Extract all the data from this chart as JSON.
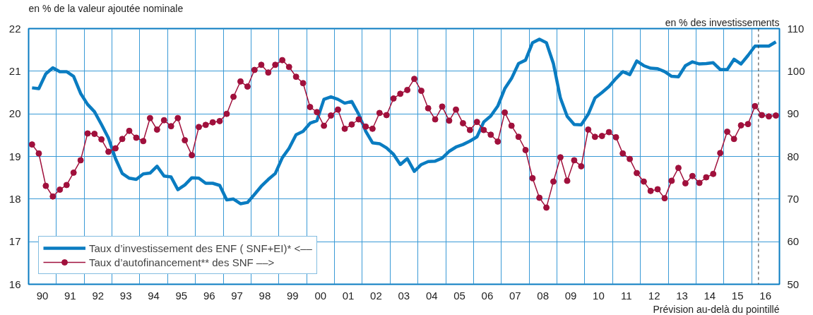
{
  "chart_data": {
    "type": "line",
    "ylabel": "en % de la valeur ajoutée nominale",
    "y2label": "en % des investissements",
    "x": [
      "1990-02-15",
      "1990-05-15",
      "1990-08-15",
      "1990-11-15",
      "1991-02-15",
      "1991-05-15",
      "1991-08-15",
      "1991-11-15",
      "1992-02-15",
      "1992-05-15",
      "1992-08-15",
      "1992-11-15",
      "1993-02-15",
      "1993-05-15",
      "1993-08-15",
      "1993-11-15",
      "1994-02-15",
      "1994-05-15",
      "1994-08-15",
      "1994-11-15",
      "1995-02-15",
      "1995-05-15",
      "1995-08-15",
      "1995-11-15",
      "1996-02-15",
      "1996-05-15",
      "1996-08-15",
      "1996-11-15",
      "1997-02-15",
      "1997-05-15",
      "1997-08-15",
      "1997-11-15",
      "1998-02-15",
      "1998-05-15",
      "1998-08-15",
      "1998-11-15",
      "1999-02-15",
      "1999-05-15",
      "1999-08-15",
      "1999-11-15",
      "2000-02-15",
      "2000-05-15",
      "2000-08-15",
      "2000-11-15",
      "2001-02-15",
      "2001-05-15",
      "2001-08-15",
      "2001-11-15",
      "2002-02-15",
      "2002-05-15",
      "2002-08-15",
      "2002-11-15",
      "2003-02-15",
      "2003-05-15",
      "2003-08-15",
      "2003-11-15",
      "2004-02-15",
      "2004-05-15",
      "2004-08-15",
      "2004-11-15",
      "2005-02-15",
      "2005-05-15",
      "2005-08-15",
      "2005-11-15",
      "2006-02-15",
      "2006-05-15",
      "2006-08-15",
      "2006-11-15",
      "2007-02-15",
      "2007-05-15",
      "2007-08-15",
      "2007-11-15",
      "2008-02-15",
      "2008-05-15",
      "2008-08-15",
      "2008-11-15",
      "2009-02-15",
      "2009-05-15",
      "2009-08-15",
      "2009-11-15",
      "2010-02-15",
      "2010-05-15",
      "2010-08-15",
      "2010-11-15",
      "2011-02-15",
      "2011-05-15",
      "2011-08-15",
      "2011-11-15",
      "2012-02-15",
      "2012-05-15",
      "2012-08-15",
      "2012-11-15",
      "2013-02-15",
      "2013-05-15",
      "2013-08-15",
      "2013-11-15",
      "2014-02-15",
      "2014-05-15",
      "2014-08-15",
      "2014-11-15",
      "2015-02-15",
      "2015-05-15",
      "2015-08-15",
      "2015-11-15",
      "2016-02-15",
      "2016-05-15",
      "2016-08-15",
      "2016-11-15"
    ],
    "series": [
      {
        "name": "Taux d’investissement des ENF ( SNF+EI)* <––",
        "color": "#0a7cc1",
        "marker": "none",
        "values": [
          20.61,
          20.59,
          20.94,
          21.08,
          20.99,
          20.99,
          20.88,
          20.48,
          20.22,
          20.05,
          19.75,
          19.43,
          18.95,
          18.6,
          18.49,
          18.46,
          18.59,
          18.61,
          18.77,
          18.54,
          18.52,
          18.22,
          18.33,
          18.5,
          18.49,
          18.37,
          18.37,
          18.32,
          17.98,
          18.0,
          17.89,
          17.92,
          18.11,
          18.3,
          18.46,
          18.6,
          18.97,
          19.19,
          19.51,
          19.59,
          19.78,
          19.84,
          20.34,
          20.4,
          20.34,
          20.25,
          20.29,
          19.99,
          19.59,
          19.32,
          19.3,
          19.2,
          19.05,
          18.81,
          18.95,
          18.65,
          18.81,
          18.88,
          18.89,
          18.96,
          19.12,
          19.22,
          19.28,
          19.36,
          19.46,
          19.81,
          19.95,
          20.18,
          20.59,
          20.83,
          21.18,
          21.26,
          21.67,
          21.75,
          21.67,
          21.18,
          20.37,
          19.94,
          19.75,
          19.74,
          19.99,
          20.37,
          20.5,
          20.64,
          20.83,
          20.99,
          20.92,
          21.24,
          21.13,
          21.07,
          21.06,
          20.99,
          20.88,
          20.87,
          21.13,
          21.22,
          21.17,
          21.18,
          21.2,
          21.04,
          21.04,
          21.28,
          21.17,
          21.37,
          21.59,
          21.59,
          21.59,
          21.69
        ]
      },
      {
        "name": "Taux d’autofinancement** des SNF ––>",
        "color": "#a0103c",
        "marker": "circle",
        "axis": "y2",
        "values": [
          82.8,
          80.7,
          73.1,
          70.6,
          72.2,
          73.3,
          76.2,
          79.1,
          85.4,
          85.3,
          84.0,
          81.1,
          81.9,
          84.1,
          86.0,
          84.4,
          83.6,
          89.0,
          86.3,
          88.5,
          87.1,
          89.0,
          83.8,
          80.3,
          86.9,
          87.4,
          88.0,
          88.3,
          90.0,
          94.0,
          97.6,
          96.4,
          100.3,
          101.5,
          99.7,
          101.5,
          102.6,
          101.0,
          98.7,
          97.2,
          91.6,
          90.4,
          87.2,
          89.6,
          91.0,
          86.5,
          87.5,
          88.7,
          87.0,
          86.5,
          90.2,
          89.7,
          93.6,
          94.7,
          95.6,
          98.2,
          95.4,
          91.3,
          88.7,
          91.7,
          88.4,
          91.0,
          87.8,
          86.2,
          88.1,
          86.2,
          85.1,
          83.5,
          90.3,
          87.2,
          84.6,
          81.5,
          74.9,
          70.3,
          68.0,
          74.1,
          79.8,
          74.3,
          79.1,
          77.7,
          86.3,
          84.6,
          84.8,
          85.7,
          84.5,
          80.7,
          79.4,
          76.1,
          74.1,
          71.9,
          72.3,
          70.2,
          74.3,
          77.3,
          73.7,
          75.4,
          73.8,
          75.1,
          75.9,
          80.8,
          85.8,
          84.1,
          87.3,
          87.6,
          91.8,
          89.7,
          89.4,
          89.6
        ]
      }
    ],
    "xlim": [
      "1990-01-01",
      "2017-01-01"
    ],
    "xticks": [
      {
        "value": "1990-07-01",
        "label": "90"
      },
      {
        "value": "1991-07-01",
        "label": "91"
      },
      {
        "value": "1992-07-01",
        "label": "92"
      },
      {
        "value": "1993-07-01",
        "label": "93"
      },
      {
        "value": "1994-07-01",
        "label": "94"
      },
      {
        "value": "1995-07-01",
        "label": "95"
      },
      {
        "value": "1996-07-01",
        "label": "96"
      },
      {
        "value": "1997-07-01",
        "label": "97"
      },
      {
        "value": "1998-07-01",
        "label": "98"
      },
      {
        "value": "1999-07-01",
        "label": "99"
      },
      {
        "value": "2000-07-01",
        "label": "00"
      },
      {
        "value": "2001-07-01",
        "label": "01"
      },
      {
        "value": "2002-07-01",
        "label": "02"
      },
      {
        "value": "2003-07-01",
        "label": "03"
      },
      {
        "value": "2004-07-01",
        "label": "04"
      },
      {
        "value": "2005-07-01",
        "label": "05"
      },
      {
        "value": "2006-07-01",
        "label": "06"
      },
      {
        "value": "2007-07-01",
        "label": "07"
      },
      {
        "value": "2008-07-01",
        "label": "08"
      },
      {
        "value": "2009-07-01",
        "label": "09"
      },
      {
        "value": "2010-07-01",
        "label": "10"
      },
      {
        "value": "2011-07-01",
        "label": "11"
      },
      {
        "value": "2012-07-01",
        "label": "12"
      },
      {
        "value": "2013-07-01",
        "label": "13"
      },
      {
        "value": "2014-07-01",
        "label": "14"
      },
      {
        "value": "2015-07-01",
        "label": "15"
      },
      {
        "value": "2016-07-01",
        "label": "16"
      }
    ],
    "ylim": [
      16,
      22
    ],
    "yticks": [
      16,
      17,
      18,
      19,
      20,
      21,
      22
    ],
    "y2lim": [
      50,
      110
    ],
    "y2ticks": [
      50,
      60,
      70,
      80,
      90,
      100,
      110
    ],
    "ref_lines": [
      {
        "axis": "x",
        "value": "2016-04-01",
        "color": "#333333",
        "line_style": "dashed"
      }
    ],
    "annotations": [
      "Prévision au-delà du pointillé"
    ],
    "grid": true,
    "legend": "bottom left"
  }
}
